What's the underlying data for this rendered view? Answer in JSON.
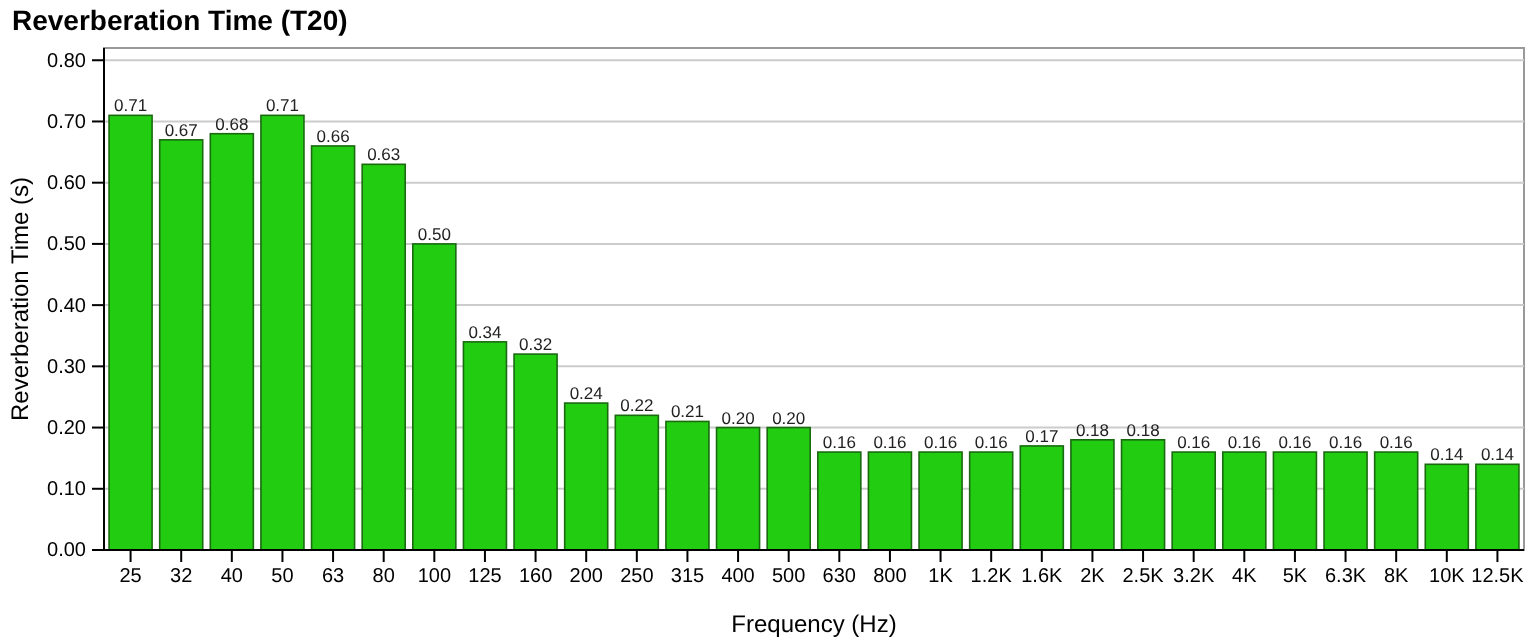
{
  "chart_data": {
    "type": "bar",
    "title": "Reverberation Time (T20)",
    "xlabel": "Frequency (Hz)",
    "ylabel": "Reverberation Time (s)",
    "categories": [
      "25",
      "32",
      "40",
      "50",
      "63",
      "80",
      "100",
      "125",
      "160",
      "200",
      "250",
      "315",
      "400",
      "500",
      "630",
      "800",
      "1K",
      "1.2K",
      "1.6K",
      "2K",
      "2.5K",
      "3.2K",
      "4K",
      "5K",
      "6.3K",
      "8K",
      "10K",
      "12.5K"
    ],
    "values": [
      0.71,
      0.67,
      0.68,
      0.71,
      0.66,
      0.63,
      0.5,
      0.34,
      0.32,
      0.24,
      0.22,
      0.21,
      0.2,
      0.2,
      0.16,
      0.16,
      0.16,
      0.16,
      0.17,
      0.18,
      0.18,
      0.16,
      0.16,
      0.16,
      0.16,
      0.16,
      0.14,
      0.14
    ],
    "value_labels": [
      "0.71",
      "0.67",
      "0.68",
      "0.71",
      "0.66",
      "0.63",
      "0.50",
      "0.34",
      "0.32",
      "0.24",
      "0.22",
      "0.21",
      "0.20",
      "0.20",
      "0.16",
      "0.16",
      "0.16",
      "0.16",
      "0.17",
      "0.18",
      "0.18",
      "0.16",
      "0.16",
      "0.16",
      "0.16",
      "0.16",
      "0.14",
      "0.14"
    ],
    "color": "#22cc11",
    "grid": "y",
    "ylim": [
      0,
      0.82
    ],
    "yticks": [
      {
        "value": 0,
        "label": "0.00"
      },
      {
        "value": 0.1,
        "label": "0.10"
      },
      {
        "value": 0.2,
        "label": "0.20"
      },
      {
        "value": 0.3,
        "label": "0.30"
      },
      {
        "value": 0.4,
        "label": "0.40"
      },
      {
        "value": 0.5,
        "label": "0.50"
      },
      {
        "value": 0.6,
        "label": "0.60"
      },
      {
        "value": 0.7,
        "label": "0.70"
      },
      {
        "value": 0.8,
        "label": "0.80"
      }
    ]
  }
}
